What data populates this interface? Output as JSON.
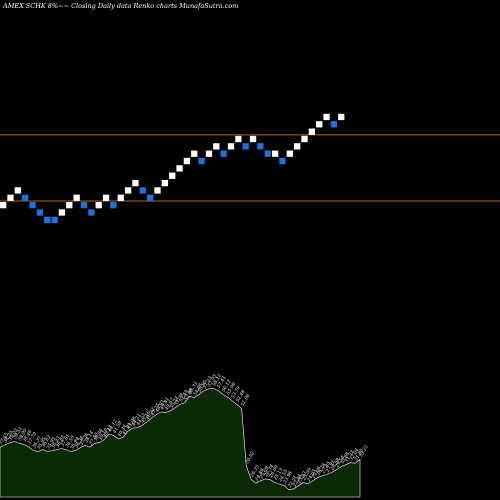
{
  "chart_data": {
    "type": "renko",
    "title": "AMEX  SCHK 8%~~  Closing Daily data  Renko  charts MunafaSutra.com",
    "colors": {
      "background": "#000000",
      "up_brick": "#ffffff",
      "down_brick": "#1e6fe0",
      "reference_line": "#b5651d",
      "volume_fill": "#0a2a06",
      "volume_stroke": "#ffffff"
    },
    "reference_lines": [
      {
        "name": "upper",
        "value": 9
      },
      {
        "name": "lower",
        "value": 0
      }
    ],
    "bricks": [
      {
        "i": 0,
        "level": 0,
        "dir": "up"
      },
      {
        "i": 1,
        "level": 1,
        "dir": "up"
      },
      {
        "i": 2,
        "level": 2,
        "dir": "up"
      },
      {
        "i": 3,
        "level": 1,
        "dir": "down"
      },
      {
        "i": 4,
        "level": 0,
        "dir": "down"
      },
      {
        "i": 5,
        "level": -1,
        "dir": "down"
      },
      {
        "i": 6,
        "level": -2,
        "dir": "down"
      },
      {
        "i": 7,
        "level": -2,
        "dir": "down"
      },
      {
        "i": 8,
        "level": -1,
        "dir": "up"
      },
      {
        "i": 9,
        "level": 0,
        "dir": "up"
      },
      {
        "i": 10,
        "level": 1,
        "dir": "up"
      },
      {
        "i": 11,
        "level": 0,
        "dir": "down"
      },
      {
        "i": 12,
        "level": -1,
        "dir": "down"
      },
      {
        "i": 13,
        "level": 0,
        "dir": "up"
      },
      {
        "i": 14,
        "level": 1,
        "dir": "up"
      },
      {
        "i": 15,
        "level": 0,
        "dir": "down"
      },
      {
        "i": 16,
        "level": 1,
        "dir": "up"
      },
      {
        "i": 17,
        "level": 2,
        "dir": "up"
      },
      {
        "i": 18,
        "level": 3,
        "dir": "up"
      },
      {
        "i": 19,
        "level": 2,
        "dir": "down"
      },
      {
        "i": 20,
        "level": 1,
        "dir": "down"
      },
      {
        "i": 21,
        "level": 2,
        "dir": "up"
      },
      {
        "i": 22,
        "level": 3,
        "dir": "up"
      },
      {
        "i": 23,
        "level": 4,
        "dir": "up"
      },
      {
        "i": 24,
        "level": 5,
        "dir": "up"
      },
      {
        "i": 25,
        "level": 6,
        "dir": "up"
      },
      {
        "i": 26,
        "level": 7,
        "dir": "up"
      },
      {
        "i": 27,
        "level": 6,
        "dir": "down"
      },
      {
        "i": 28,
        "level": 7,
        "dir": "up"
      },
      {
        "i": 29,
        "level": 8,
        "dir": "up"
      },
      {
        "i": 30,
        "level": 7,
        "dir": "down"
      },
      {
        "i": 31,
        "level": 8,
        "dir": "up"
      },
      {
        "i": 32,
        "level": 9,
        "dir": "up"
      },
      {
        "i": 33,
        "level": 8,
        "dir": "down"
      },
      {
        "i": 34,
        "level": 9,
        "dir": "up"
      },
      {
        "i": 35,
        "level": 8,
        "dir": "down"
      },
      {
        "i": 36,
        "level": 7,
        "dir": "down"
      },
      {
        "i": 37,
        "level": 7,
        "dir": "up"
      },
      {
        "i": 38,
        "level": 6,
        "dir": "down"
      },
      {
        "i": 39,
        "level": 7,
        "dir": "up"
      },
      {
        "i": 40,
        "level": 8,
        "dir": "up"
      },
      {
        "i": 41,
        "level": 9,
        "dir": "up"
      },
      {
        "i": 42,
        "level": 10,
        "dir": "up"
      },
      {
        "i": 43,
        "level": 11,
        "dir": "up"
      },
      {
        "i": 44,
        "level": 12,
        "dir": "up"
      },
      {
        "i": 45,
        "level": 11,
        "dir": "down"
      },
      {
        "i": 46,
        "level": 12,
        "dir": "up"
      }
    ],
    "volume_labels": [
      "37.45",
      "38.25",
      "39.02",
      "39.51",
      "38.90",
      "38.46",
      "37.70",
      "36.31",
      "35.95",
      "36.62",
      "35.95",
      "36.23",
      "36.62",
      "37.01",
      "36.55",
      "35.94",
      "36.38",
      "37.36",
      "38.14",
      "37.50",
      "38.84",
      "39.10",
      "40.12",
      "42.12",
      "41.59",
      "40.34",
      "41.01",
      "43.08",
      "44.21",
      "44.32",
      "45.16",
      "46.32",
      "47.75",
      "48.93",
      "49.81",
      "49.67",
      "50.24",
      "51.38",
      "52.49",
      "53.09",
      "55.33",
      "54.88",
      "55.95",
      "57.23",
      "57.93",
      "58.12",
      "57.41",
      "56.12",
      "55.08",
      "53.79",
      "52.48",
      "51.06",
      "30.92",
      "26.25",
      "24.89",
      "25.69",
      "26.34",
      "26.09",
      "25.13",
      "24.55",
      "23.98",
      "22.51",
      "22.88",
      "23.93",
      "25.09",
      "24.65",
      "25.66",
      "26.78",
      "27.45",
      "27.91",
      "28.58",
      "29.54",
      "30.68",
      "31.32",
      "32.04",
      "31.85",
      "33.21"
    ]
  }
}
